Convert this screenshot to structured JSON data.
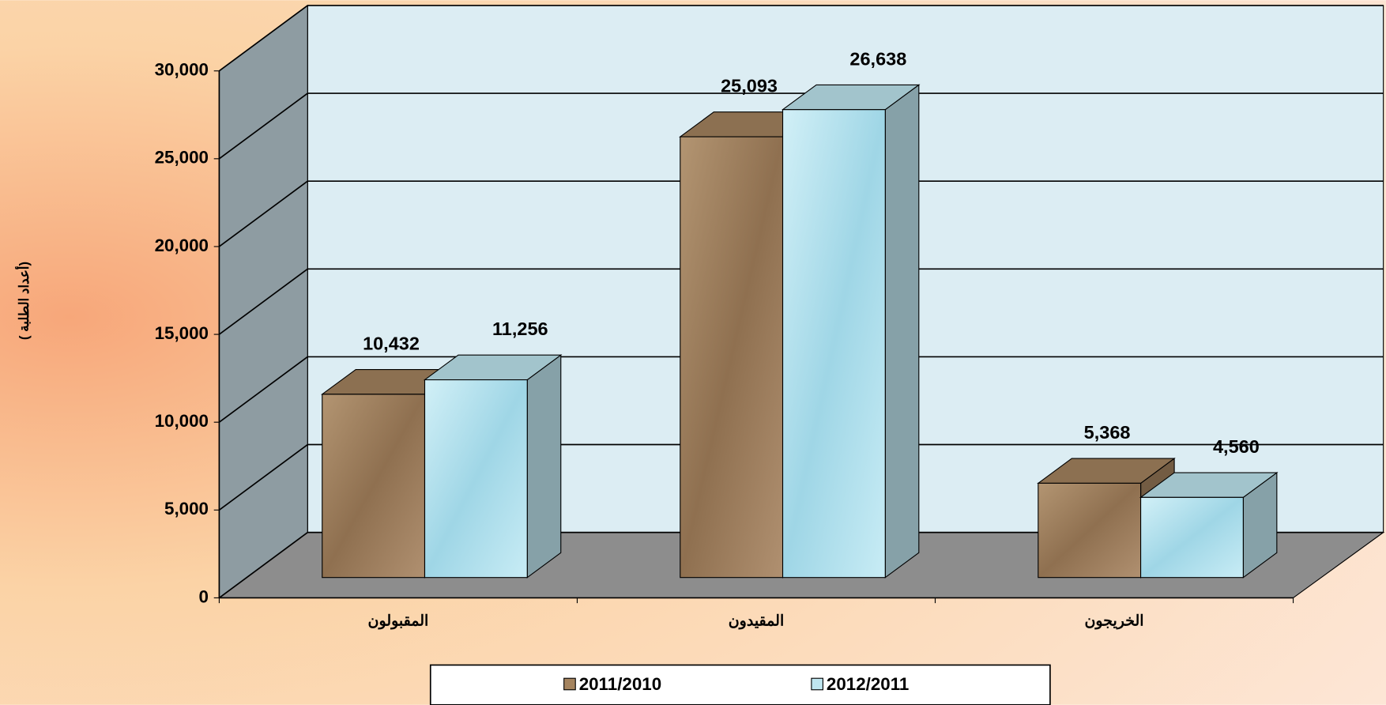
{
  "chart_data": {
    "type": "bar3d",
    "y_label": "( أعداد الطلبة)",
    "categories": [
      "المقبولون",
      "المقيدون",
      "الخريجون"
    ],
    "series": [
      {
        "name": "2011/2010",
        "color": "#a5845f",
        "values": [
          10432,
          25093,
          5368
        ],
        "value_labels": [
          "10,432",
          "25,093",
          "5,368"
        ]
      },
      {
        "name": "2012/2011",
        "color": "#bfe6f0",
        "values": [
          11256,
          26638,
          4560
        ],
        "value_labels": [
          "11,256",
          "26,638",
          "4,560"
        ]
      }
    ],
    "ylim": [
      0,
      30000
    ],
    "yticks": [
      0,
      {
        "value": 5000,
        "label": "5,000"
      },
      {
        "value": 10000,
        "label": "10,000"
      },
      {
        "value": 15000,
        "label": "15,000"
      },
      {
        "value": 20000,
        "label": "20,000"
      },
      {
        "value": 25000,
        "label": "25,000"
      },
      {
        "value": 30000,
        "label": "30,000"
      }
    ],
    "grid": true,
    "legend": "bottom"
  }
}
